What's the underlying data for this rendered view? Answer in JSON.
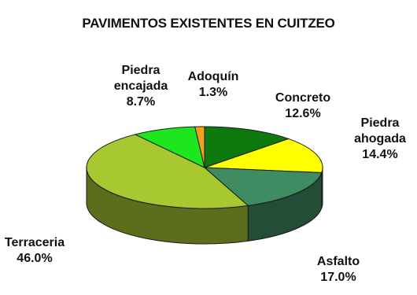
{
  "chart_data": {
    "type": "pie",
    "title": "PAVIMENTOS EXISTENTES EN CUITZEO",
    "slices": [
      {
        "label": "Concreto",
        "value": 12.6,
        "value_text": "12.6%",
        "color": "#0e7a0e"
      },
      {
        "label": "Piedra ahogada",
        "value": 14.4,
        "value_text": "14.4%",
        "color": "#ffff00"
      },
      {
        "label": "Asfalto",
        "value": 17.0,
        "value_text": "17.0%",
        "color": "#3f8c62"
      },
      {
        "label": "Terraceria",
        "value": 46.0,
        "value_text": "46.0%",
        "color": "#a8c832"
      },
      {
        "label": "Piedra encajada",
        "value": 8.7,
        "value_text": "8.7%",
        "color": "#1ee61e"
      },
      {
        "label": "Adoquín",
        "value": 1.3,
        "value_text": "1.3%",
        "color": "#f2a218"
      }
    ],
    "legend": "none"
  }
}
